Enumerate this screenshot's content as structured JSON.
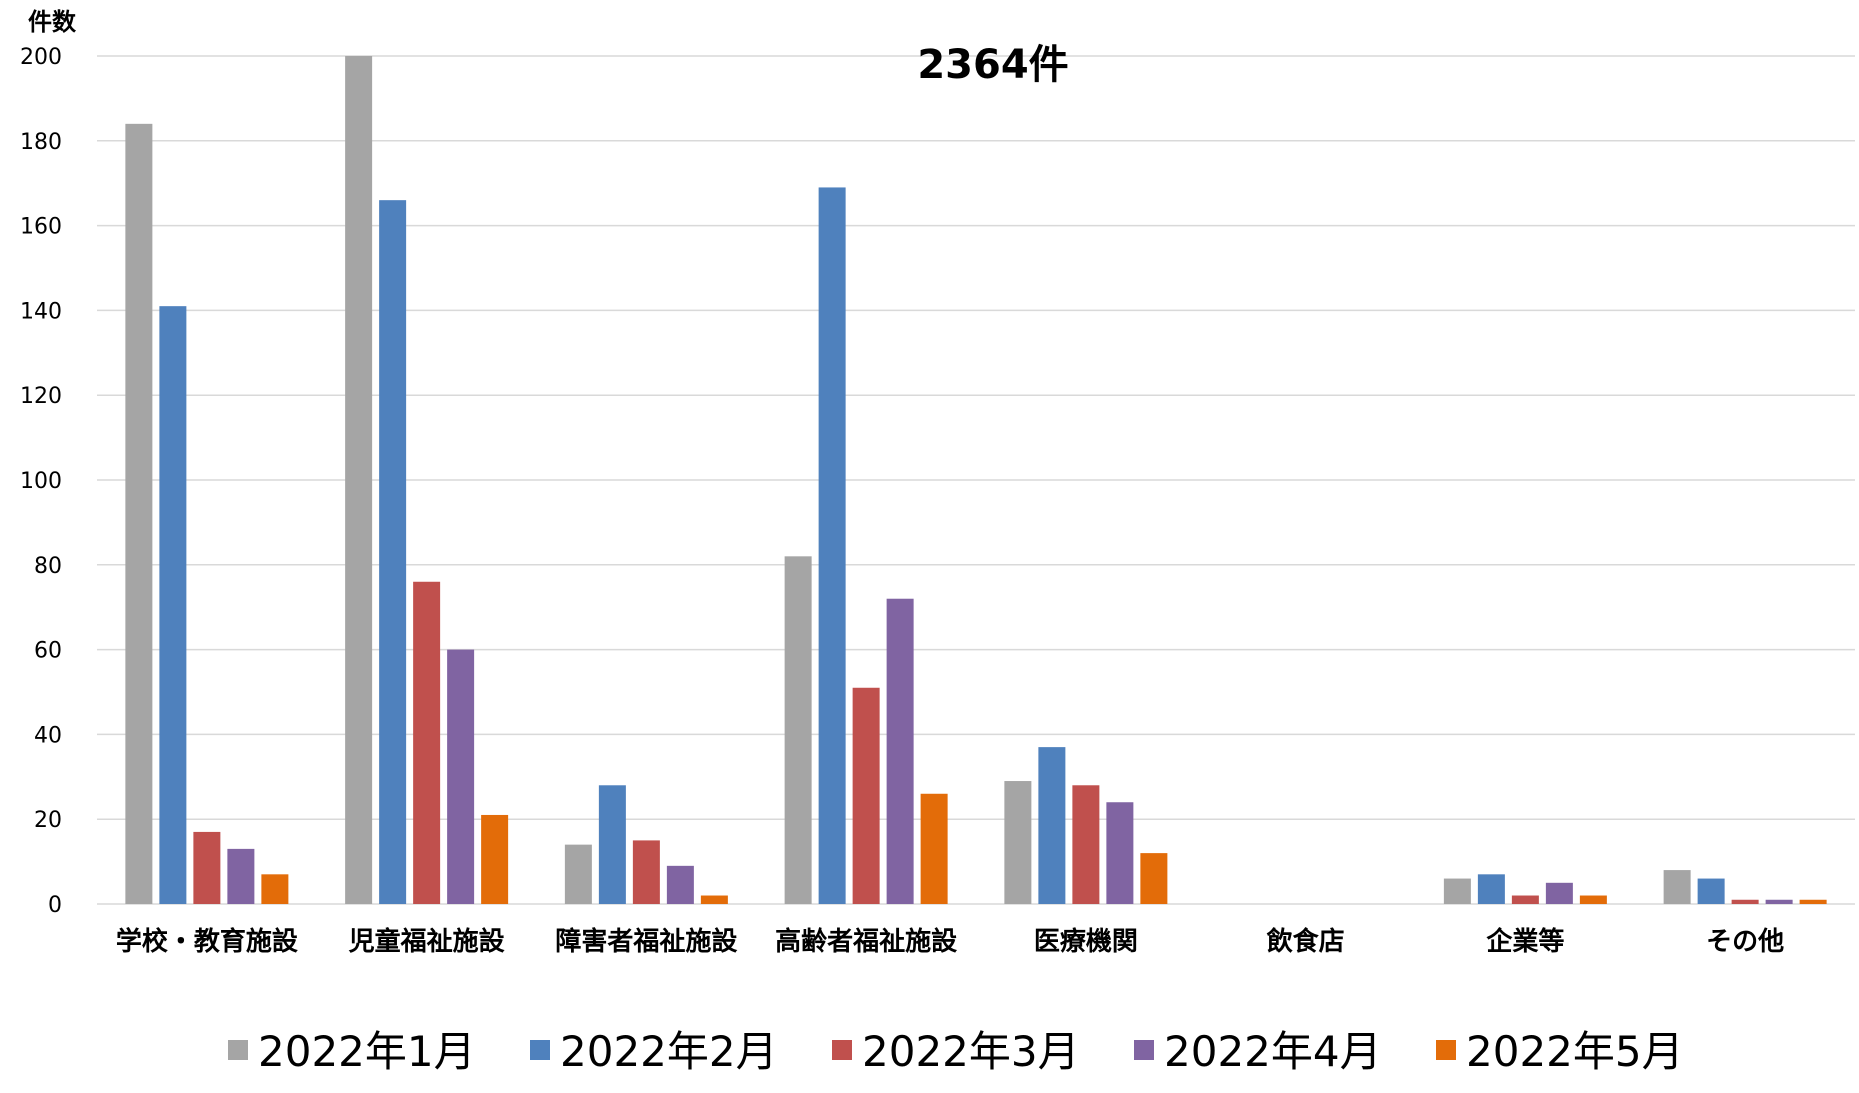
{
  "chart_data": {
    "type": "bar",
    "title": "2364件",
    "ylabel": "件数",
    "xlabel": "",
    "ylim": [
      0,
      200
    ],
    "yticks": [
      0,
      20,
      40,
      60,
      80,
      100,
      120,
      140,
      160,
      180,
      200
    ],
    "grid": true,
    "legend_position": "bottom",
    "categories": [
      "学校・教育施設",
      "児童福祉施設",
      "障害者福祉施設",
      "高齢者福祉施設",
      "医療機関",
      "飲食店",
      "企業等",
      "その他"
    ],
    "series": [
      {
        "name": "2022年1月",
        "color": "#a5a5a5",
        "values": [
          184,
          200,
          14,
          82,
          29,
          0,
          6,
          8
        ]
      },
      {
        "name": "2022年2月",
        "color": "#4f81bd",
        "values": [
          141,
          166,
          28,
          169,
          37,
          0,
          7,
          6
        ]
      },
      {
        "name": "2022年3月",
        "color": "#c0504d",
        "values": [
          17,
          76,
          15,
          51,
          28,
          0,
          2,
          1
        ]
      },
      {
        "name": "2022年4月",
        "color": "#8064a2",
        "values": [
          13,
          60,
          9,
          72,
          24,
          0,
          5,
          1
        ]
      },
      {
        "name": "2022年5月",
        "color": "#e36c09",
        "values": [
          7,
          21,
          2,
          26,
          12,
          0,
          2,
          1
        ]
      }
    ]
  }
}
